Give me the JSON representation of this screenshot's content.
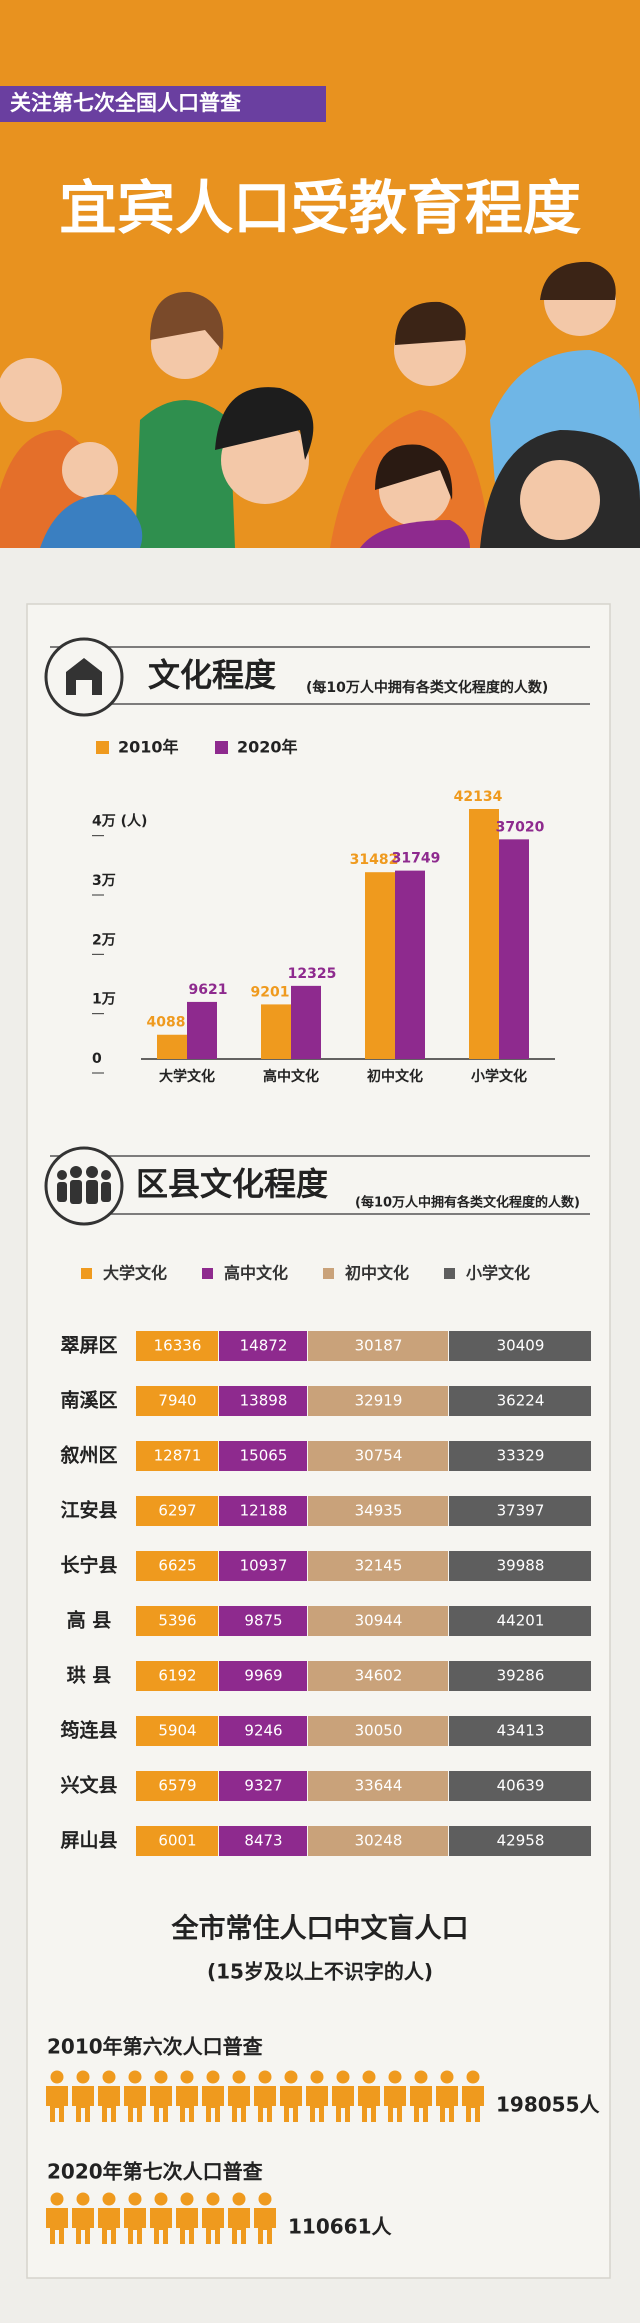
{
  "header": {
    "tag": "关注第七次全国人口普查",
    "title": "宜宾人口受教育程度"
  },
  "chart_data": [
    {
      "type": "bar",
      "title": "文化程度",
      "subtitle": "(每10万人中拥有各类文化程度的人数)",
      "categories": [
        "大学文化",
        "高中文化",
        "初中文化",
        "小学文化"
      ],
      "series": [
        {
          "name": "2010年",
          "color": "#ef9a1e",
          "values": [
            4088,
            9201,
            31482,
            42134
          ]
        },
        {
          "name": "2020年",
          "color": "#8e2a8e",
          "values": [
            9621,
            12325,
            31749,
            37020
          ]
        }
      ],
      "ylim": [
        0,
        45000
      ],
      "yticks": [
        0,
        {
          "value": 10000,
          "label": "1万"
        },
        {
          "value": 20000,
          "label": "2万"
        },
        {
          "value": 30000,
          "label": "3万"
        },
        {
          "value": 40000,
          "label": "4万 (人)"
        }
      ]
    },
    {
      "type": "table",
      "title": "区县文化程度",
      "subtitle": "(每10万人中拥有各类文化程度的人数)",
      "categories": [
        "翠屏区",
        "南溪区",
        "叙州区",
        "江安县",
        "长宁县",
        "高 县",
        "珙 县",
        "筠连县",
        "兴文县",
        "屏山县"
      ],
      "series": [
        {
          "name": "大学文化",
          "color": "#ef9a1e",
          "values": [
            16336,
            7940,
            12871,
            6297,
            6625,
            5396,
            6192,
            5904,
            6579,
            6001
          ]
        },
        {
          "name": "高中文化",
          "color": "#8e2a8e",
          "values": [
            14872,
            13898,
            15065,
            12188,
            10937,
            9875,
            9969,
            9246,
            9327,
            8473
          ]
        },
        {
          "name": "初中文化",
          "color": "#c9a27a",
          "values": [
            30187,
            32919,
            30754,
            34935,
            32145,
            30944,
            34602,
            30050,
            33644,
            30248
          ]
        },
        {
          "name": "小学文化",
          "color": "#5e5e5e",
          "values": [
            30409,
            36224,
            33329,
            37397,
            39988,
            44201,
            39286,
            43413,
            40639,
            42958
          ]
        }
      ]
    }
  ],
  "illiteracy": {
    "title": "全市常住人口中文盲人口",
    "subtitle": "(15岁及以上不识字的人)",
    "color": "#ef9a1e",
    "rows": [
      {
        "label": "2010年第六次人口普查",
        "value": 198055,
        "value_label": "198055人"
      },
      {
        "label": "2020年第七次人口普查",
        "value": 110661,
        "value_label": "110661人"
      }
    ]
  }
}
